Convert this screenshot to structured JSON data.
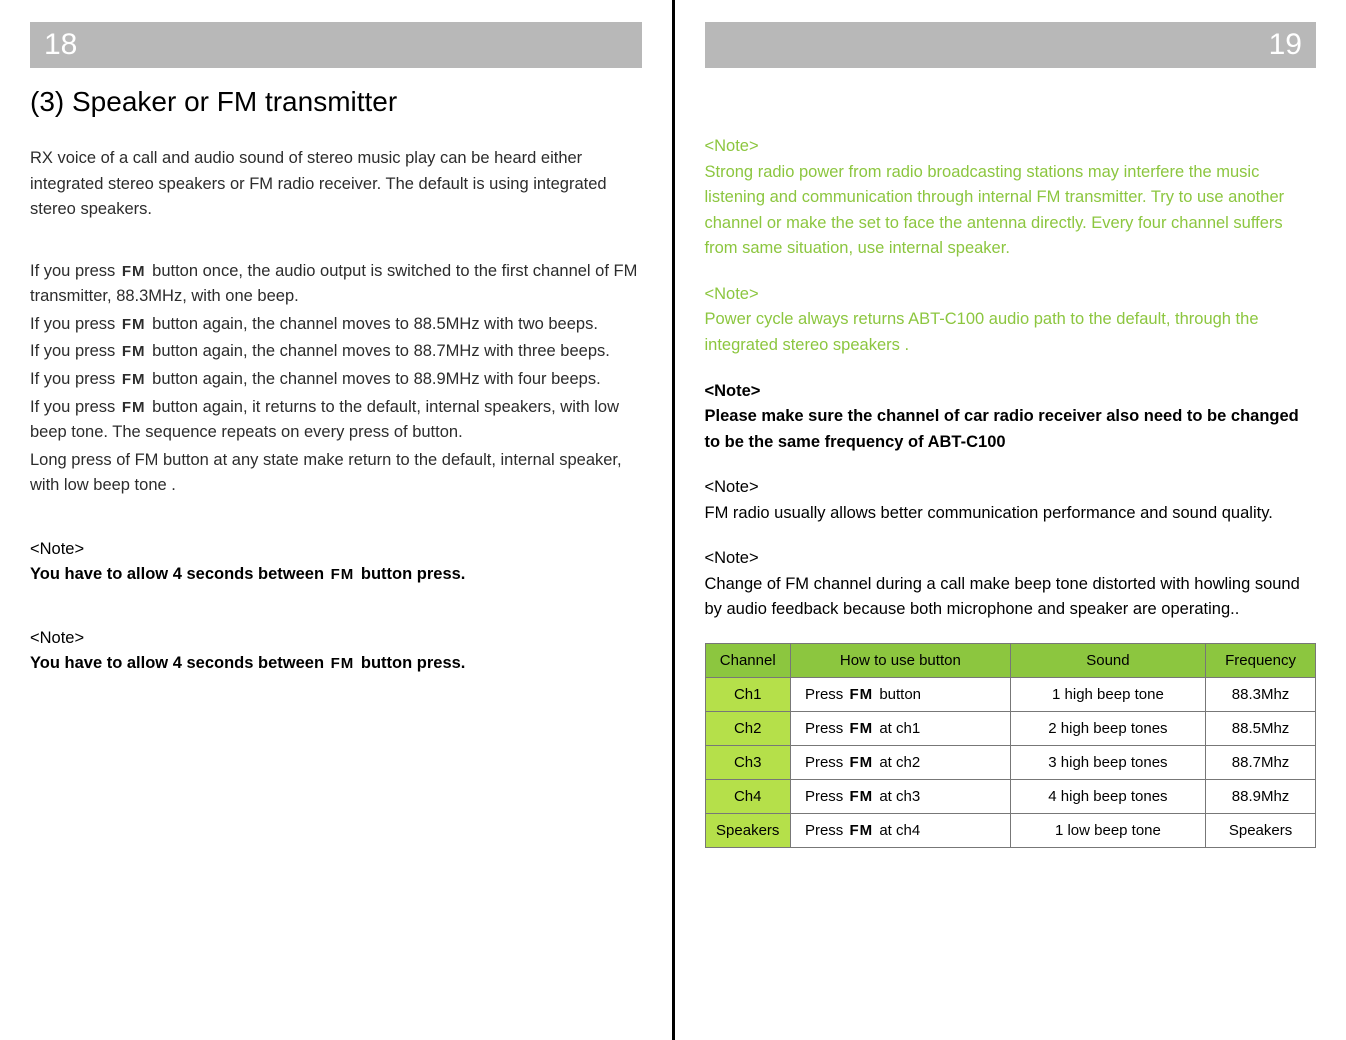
{
  "leftPage": {
    "pageNumber": "18",
    "sectionTitle": "(3) Speaker or FM transmitter",
    "intro": "RX voice of a call and audio sound of stereo music play can be heard either integrated stereo speakers or FM radio receiver. The default is using integrated stereo speakers.",
    "p1a": "If you press ",
    "p1b": " button once, the audio output is switched to the first channel of FM transmitter, 88.3MHz, with one beep.",
    "p2a": "If you press ",
    "p2b": " button again, the channel moves to 88.5MHz with two beeps.",
    "p3a": "If you press ",
    "p3b": " button again, the channel moves to 88.7MHz with three beeps.",
    "p4a": "If you press ",
    "p4b": " button again, the channel moves to 88.9MHz with four beeps.",
    "p5a": "If you press ",
    "p5b": " button again, it returns to the default, internal speakers, with low beep tone. The sequence repeats on every press of        button.",
    "p6": "Long press of FM button at any state make return to the default, internal speaker, with low beep tone .",
    "note1hdr": "<Note>",
    "note1a": "You have to allow 4 seconds between ",
    "note1b": " button press.",
    "note2hdr": "<Note>",
    "note2a": "You have to allow 4 seconds between ",
    "note2b": " button press.",
    "fmLabel": "FM"
  },
  "rightPage": {
    "pageNumber": "19",
    "noteA_hdr": "<Note>",
    "noteA_body": "Strong radio power from radio broadcasting stations may interfere the music listening and communication through internal FM transmitter. Try to use another channel or make the set to face the antenna directly. Every four channel suffers from same situation, use internal speaker.",
    "noteB_hdr": "<Note>",
    "noteB_body": "Power cycle always returns ABT-C100 audio path to the default, through the integrated stereo speakers .",
    "noteC_hdr": "<Note>",
    "noteC_body": "Please make sure the channel of  car radio receiver also need to be changed to be the same frequency of ABT-C100",
    "noteD_hdr": "<Note>",
    "noteD_body": "FM radio usually allows better communication performance and sound quality.",
    "noteE_hdr": "<Note>",
    "noteE_body": "Change of FM channel during a call make beep tone distorted with howling sound by audio feedback because both microphone and speaker are operating..",
    "table": {
      "headers": [
        "Channel",
        "How to use button",
        "Sound",
        "Frequency"
      ],
      "rows": [
        {
          "ch": "Ch1",
          "howPre": "Press ",
          "howPost": " button",
          "sound": "1 high beep tone",
          "freq": "88.3Mhz"
        },
        {
          "ch": "Ch2",
          "howPre": "Press ",
          "howPost": " at ch1",
          "sound": "2 high beep tones",
          "freq": "88.5Mhz"
        },
        {
          "ch": "Ch3",
          "howPre": "Press ",
          "howPost": " at ch2",
          "sound": "3 high beep tones",
          "freq": "88.7Mhz"
        },
        {
          "ch": "Ch4",
          "howPre": "Press ",
          "howPost": " at ch3",
          "sound": "4 high beep tones",
          "freq": "88.9Mhz"
        },
        {
          "ch": "Speakers",
          "howPre": "Press ",
          "howPost": " at ch4",
          "sound": "1 low beep tone",
          "freq": "Speakers"
        }
      ],
      "colWidths": [
        "14%",
        "36%",
        "32%",
        "18%"
      ],
      "headerBg": "#8cc63f",
      "rowHdrBg": "#b5e04a"
    },
    "fmLabel": "FM"
  }
}
